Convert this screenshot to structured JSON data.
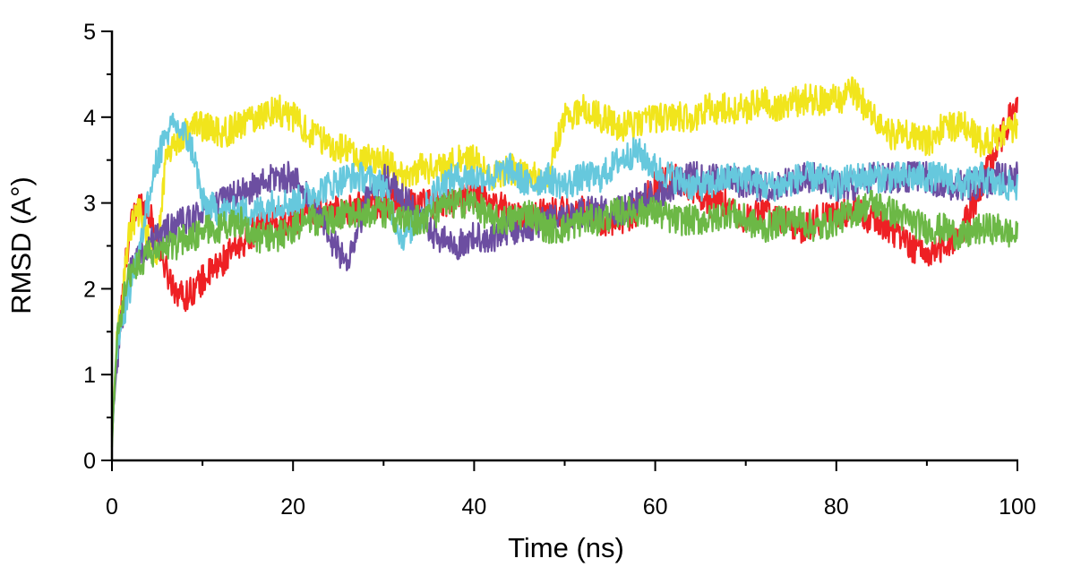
{
  "chart_data": {
    "type": "line",
    "title": "",
    "xlabel": "Time (ns)",
    "ylabel": "RMSD (A°)",
    "xlim": [
      0,
      100
    ],
    "ylim": [
      0,
      5
    ],
    "xticks": [
      "0",
      "20",
      "40",
      "60",
      "80",
      "100"
    ],
    "yticks": [
      "0",
      "1",
      "2",
      "3",
      "4",
      "5"
    ],
    "grid": false,
    "legend": "none",
    "x": [
      0,
      0.5,
      1,
      1.5,
      2,
      3,
      4,
      5,
      6,
      7,
      8,
      9,
      10,
      12,
      14,
      16,
      18,
      20,
      22,
      24,
      26,
      28,
      30,
      32,
      34,
      36,
      38,
      40,
      42,
      44,
      46,
      48,
      50,
      52,
      54,
      56,
      58,
      60,
      62,
      64,
      66,
      68,
      70,
      72,
      74,
      76,
      78,
      80,
      82,
      84,
      86,
      88,
      90,
      92,
      94,
      96,
      98,
      100
    ],
    "series": [
      {
        "color": "#ee2024",
        "values": [
          0.3,
          1.2,
          1.7,
          2.3,
          2.7,
          3.0,
          2.9,
          2.6,
          2.2,
          2.0,
          1.9,
          2.0,
          2.1,
          2.3,
          2.5,
          2.7,
          2.8,
          2.8,
          2.9,
          2.9,
          2.9,
          3.0,
          3.0,
          3.0,
          3.0,
          3.0,
          3.0,
          3.1,
          3.0,
          2.9,
          2.8,
          2.9,
          2.9,
          2.9,
          2.8,
          2.8,
          2.9,
          3.2,
          3.3,
          3.2,
          3.0,
          3.0,
          2.8,
          2.9,
          2.8,
          2.7,
          2.8,
          2.9,
          2.9,
          2.8,
          2.7,
          2.5,
          2.4,
          2.5,
          2.7,
          3.2,
          3.7,
          4.2
        ]
      },
      {
        "color": "#f1e51c",
        "values": [
          0.4,
          1.3,
          1.8,
          2.3,
          2.7,
          2.9,
          2.6,
          2.4,
          3.6,
          3.7,
          3.8,
          3.9,
          3.9,
          3.8,
          3.9,
          4.0,
          4.1,
          4.0,
          3.8,
          3.7,
          3.6,
          3.5,
          3.5,
          3.3,
          3.4,
          3.4,
          3.5,
          3.5,
          3.3,
          3.4,
          3.3,
          3.3,
          4.0,
          4.1,
          4.0,
          3.9,
          3.9,
          4.0,
          4.0,
          4.0,
          4.1,
          4.1,
          4.1,
          4.2,
          4.1,
          4.2,
          4.2,
          4.2,
          4.3,
          4.0,
          3.8,
          3.8,
          3.7,
          3.9,
          3.9,
          3.7,
          3.8,
          3.9
        ]
      },
      {
        "color": "#6c4ea1",
        "values": [
          0.3,
          1.1,
          1.5,
          1.9,
          2.2,
          2.4,
          2.5,
          2.6,
          2.7,
          2.7,
          2.8,
          2.8,
          2.9,
          3.0,
          3.1,
          3.2,
          3.3,
          3.3,
          3.0,
          2.6,
          2.3,
          3.0,
          3.3,
          3.1,
          2.8,
          2.6,
          2.5,
          2.6,
          2.6,
          2.7,
          2.7,
          2.8,
          2.8,
          2.9,
          2.9,
          2.9,
          3.0,
          3.1,
          3.2,
          3.3,
          3.3,
          3.3,
          3.2,
          3.2,
          3.2,
          3.3,
          3.3,
          3.2,
          3.2,
          3.3,
          3.3,
          3.3,
          3.3,
          3.2,
          3.2,
          3.2,
          3.3,
          3.3
        ]
      },
      {
        "color": "#66c8dd",
        "values": [
          0.2,
          1.3,
          1.6,
          1.8,
          2.0,
          2.5,
          3.0,
          3.5,
          3.8,
          3.9,
          3.8,
          3.6,
          3.0,
          2.9,
          2.9,
          2.9,
          3.0,
          3.0,
          3.1,
          3.2,
          3.3,
          3.3,
          3.2,
          2.6,
          2.8,
          3.2,
          3.3,
          3.3,
          3.3,
          3.4,
          3.2,
          3.3,
          3.2,
          3.3,
          3.3,
          3.5,
          3.6,
          3.4,
          3.3,
          3.2,
          3.2,
          3.3,
          3.3,
          3.2,
          3.2,
          3.3,
          3.3,
          3.2,
          3.3,
          3.3,
          3.3,
          3.3,
          3.3,
          3.3,
          3.2,
          3.3,
          3.2,
          3.2
        ]
      },
      {
        "color": "#6cb846",
        "values": [
          0.2,
          1.3,
          1.7,
          2.0,
          2.2,
          2.3,
          2.4,
          2.4,
          2.5,
          2.5,
          2.6,
          2.6,
          2.7,
          2.7,
          2.8,
          2.6,
          2.6,
          2.7,
          2.8,
          2.8,
          2.9,
          2.9,
          2.9,
          2.8,
          2.8,
          2.9,
          3.0,
          3.0,
          2.8,
          2.8,
          2.9,
          2.7,
          2.7,
          2.8,
          2.8,
          2.9,
          2.9,
          2.9,
          2.8,
          2.8,
          2.8,
          2.9,
          2.8,
          2.7,
          2.8,
          2.8,
          2.7,
          2.8,
          2.9,
          3.0,
          2.9,
          2.8,
          2.7,
          2.7,
          2.6,
          2.7,
          2.7,
          2.6
        ]
      }
    ]
  }
}
